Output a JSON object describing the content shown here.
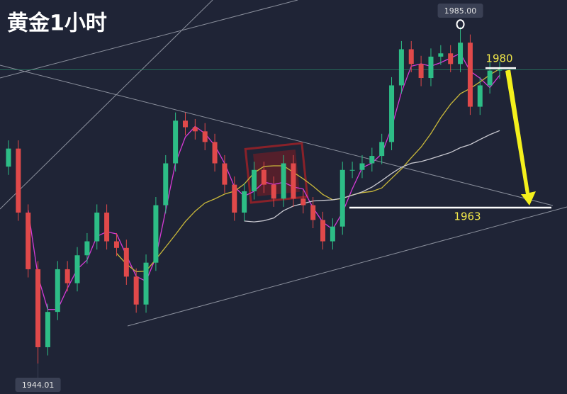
{
  "chart_data": {
    "type": "candlestick",
    "title": "黄金1小时",
    "up_color": "#2dbd86",
    "down_color": "#e0494a",
    "background": "#1f2436",
    "ylim": [
      1940.3,
      1988.3
    ],
    "open": [
      1968.0,
      1970.2,
      1962.4,
      1955.5,
      1946.0,
      1950.3,
      1955.5,
      1953.8,
      1957.2,
      1958.9,
      1962.4,
      1958.9,
      1958.1,
      1954.6,
      1951.2,
      1956.3,
      1963.3,
      1968.4,
      1973.6,
      1972.8,
      1972.3,
      1971.0,
      1968.4,
      1965.8,
      1962.4,
      1965.0,
      1967.6,
      1965.8,
      1964.1,
      1968.4,
      1964.1,
      1963.3,
      1961.5,
      1958.9,
      1960.7,
      1967.6,
      1967.6,
      1968.4,
      1969.3,
      1971.0,
      1977.9,
      1982.3,
      1980.5,
      1978.8,
      1981.4,
      1981.8,
      1980.5,
      1983.1,
      1975.3,
      1977.9,
      1979.7
    ],
    "high": [
      1971.2,
      1971.2,
      1963.4,
      1956.5,
      1951.3,
      1956.5,
      1956.5,
      1958.2,
      1959.9,
      1963.4,
      1963.4,
      1959.9,
      1959.1,
      1955.6,
      1957.3,
      1964.3,
      1969.4,
      1974.6,
      1974.6,
      1973.8,
      1973.3,
      1972.0,
      1969.4,
      1966.8,
      1966.0,
      1968.6,
      1968.6,
      1966.8,
      1969.4,
      1969.4,
      1965.1,
      1964.3,
      1962.5,
      1961.7,
      1968.6,
      1968.6,
      1969.4,
      1970.3,
      1972.0,
      1978.9,
      1983.3,
      1983.3,
      1981.5,
      1982.4,
      1982.8,
      1982.8,
      1985.0,
      1984.1,
      1978.9,
      1980.7,
      1980.8
    ],
    "low": [
      1967.0,
      1961.4,
      1954.5,
      1944.01,
      1945.0,
      1949.3,
      1952.8,
      1952.8,
      1956.2,
      1957.9,
      1957.9,
      1957.1,
      1953.6,
      1950.2,
      1950.2,
      1955.3,
      1962.3,
      1967.4,
      1971.8,
      1971.3,
      1970.0,
      1967.4,
      1964.8,
      1961.4,
      1961.4,
      1964.0,
      1964.8,
      1963.1,
      1963.1,
      1963.1,
      1962.3,
      1960.5,
      1957.9,
      1957.9,
      1959.7,
      1966.6,
      1966.6,
      1967.4,
      1968.3,
      1970.0,
      1976.9,
      1979.5,
      1977.8,
      1977.8,
      1980.4,
      1979.5,
      1979.5,
      1974.3,
      1974.3,
      1976.9,
      1978.7
    ],
    "close": [
      1970.2,
      1962.4,
      1955.5,
      1946.0,
      1950.3,
      1955.5,
      1953.8,
      1957.2,
      1958.9,
      1962.4,
      1958.9,
      1958.1,
      1954.6,
      1951.2,
      1956.3,
      1963.3,
      1968.4,
      1973.6,
      1972.8,
      1972.3,
      1971.0,
      1968.4,
      1965.8,
      1962.4,
      1965.0,
      1967.6,
      1965.8,
      1964.1,
      1968.4,
      1964.1,
      1963.3,
      1961.5,
      1958.9,
      1960.7,
      1967.6,
      1967.6,
      1968.4,
      1969.3,
      1971.0,
      1977.9,
      1982.3,
      1980.5,
      1978.8,
      1981.4,
      1981.8,
      1980.5,
      1983.1,
      1975.3,
      1977.9,
      1979.7,
      1979.8
    ],
    "moving_averages": [
      {
        "period": 3,
        "color": "#d63bd6"
      },
      {
        "period": 12,
        "color": "#c9b83a"
      },
      {
        "period": 25,
        "color": "#c8c8d0"
      }
    ],
    "price_labels": [
      {
        "value": 1985,
        "label": "1985.00"
      },
      {
        "value": 1944.01,
        "label": "1944.01"
      }
    ],
    "levels": [
      1980,
      1963
    ],
    "level_color": "#ffffff",
    "level_text_color": "#f2e84a"
  }
}
